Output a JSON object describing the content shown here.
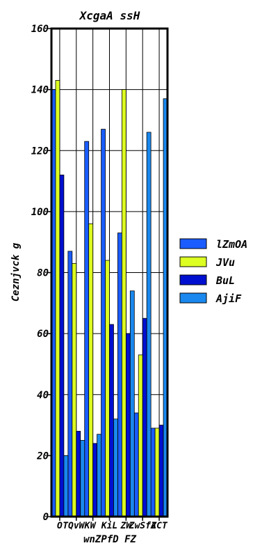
{
  "chart_data": {
    "type": "bar",
    "title": "XcgaA ssH",
    "xlabel": "wnZPfD FZ",
    "ylabel": "Ceznjvck g",
    "ylim": [
      0,
      160
    ],
    "yticks": [
      0,
      20,
      40,
      60,
      80,
      100,
      120,
      140,
      160
    ],
    "grid": true,
    "legend_position": "right",
    "categories": [
      "O",
      "TQvWK",
      "W",
      "KiL",
      "ZW",
      "ZwSfA",
      "ZCT"
    ],
    "series": [
      {
        "name": "lZmOA",
        "color": "#1a5cff",
        "values": [
          140,
          87,
          123,
          127,
          93,
          34,
          29
        ]
      },
      {
        "name": "JVu",
        "color": "#ddff22",
        "values": [
          143,
          83,
          96,
          84,
          140,
          53,
          29
        ]
      },
      {
        "name": "BuL",
        "color": "#0010d0",
        "values": [
          112,
          28,
          24,
          63,
          60,
          65,
          30
        ]
      },
      {
        "name": "AjiF",
        "color": "#1a88ee",
        "values": [
          20,
          25,
          27,
          32,
          74,
          126,
          137
        ]
      }
    ]
  }
}
